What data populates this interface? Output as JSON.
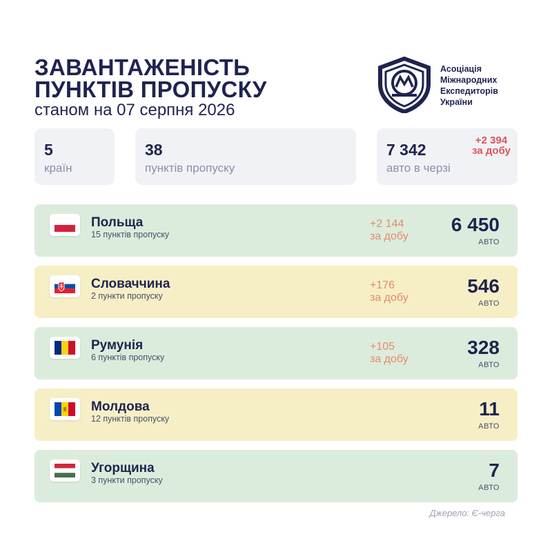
{
  "header": {
    "title_line1": "ЗАВАНТАЖЕНІСТЬ",
    "title_line2": "ПУНКТІВ ПРОПУСКУ",
    "subtitle": "станом на 07 серпня 2026"
  },
  "organization": {
    "line1": "Асоціація",
    "line2": "Міжнародних",
    "line3": "Експедиторів",
    "line4": "України"
  },
  "stats": {
    "countries": {
      "value": "5",
      "label": "країн"
    },
    "checkpoints": {
      "value": "38",
      "label": "пунктів пропуску"
    },
    "queue": {
      "value": "7 342",
      "label": "авто в черзі",
      "delta": "+2 394",
      "delta_label": "за добу"
    }
  },
  "countries": [
    {
      "name": "Польща",
      "points": "15 пунктів пропуску",
      "delta": "+2 144",
      "delta_label": "за добу",
      "value": "6 450",
      "unit": "АВТО",
      "flag": "poland-flag-icon"
    },
    {
      "name": "Словаччина",
      "points": "2 пункти пропуску",
      "delta": "+176",
      "delta_label": "за добу",
      "value": "546",
      "unit": "АВТО",
      "flag": "slovakia-flag-icon"
    },
    {
      "name": "Румунія",
      "points": "6 пунктів пропуску",
      "delta": "+105",
      "delta_label": "за добу",
      "value": "328",
      "unit": "АВТО",
      "flag": "romania-flag-icon"
    },
    {
      "name": "Молдова",
      "points": "12 пунктів пропуску",
      "value": "11",
      "unit": "АВТО",
      "flag": "moldova-flag-icon"
    },
    {
      "name": "Угорщина",
      "points": "3 пункти пропуску",
      "value": "7",
      "unit": "АВТО",
      "flag": "hungary-flag-icon"
    }
  ],
  "source": "Джерело: Є-черга",
  "colors": {
    "primary": "#1f2350",
    "green_row": "#dcecdc",
    "yellow_row": "#f6efc6",
    "delta": "#e58a6c",
    "stat_delta": "#e0535a"
  }
}
